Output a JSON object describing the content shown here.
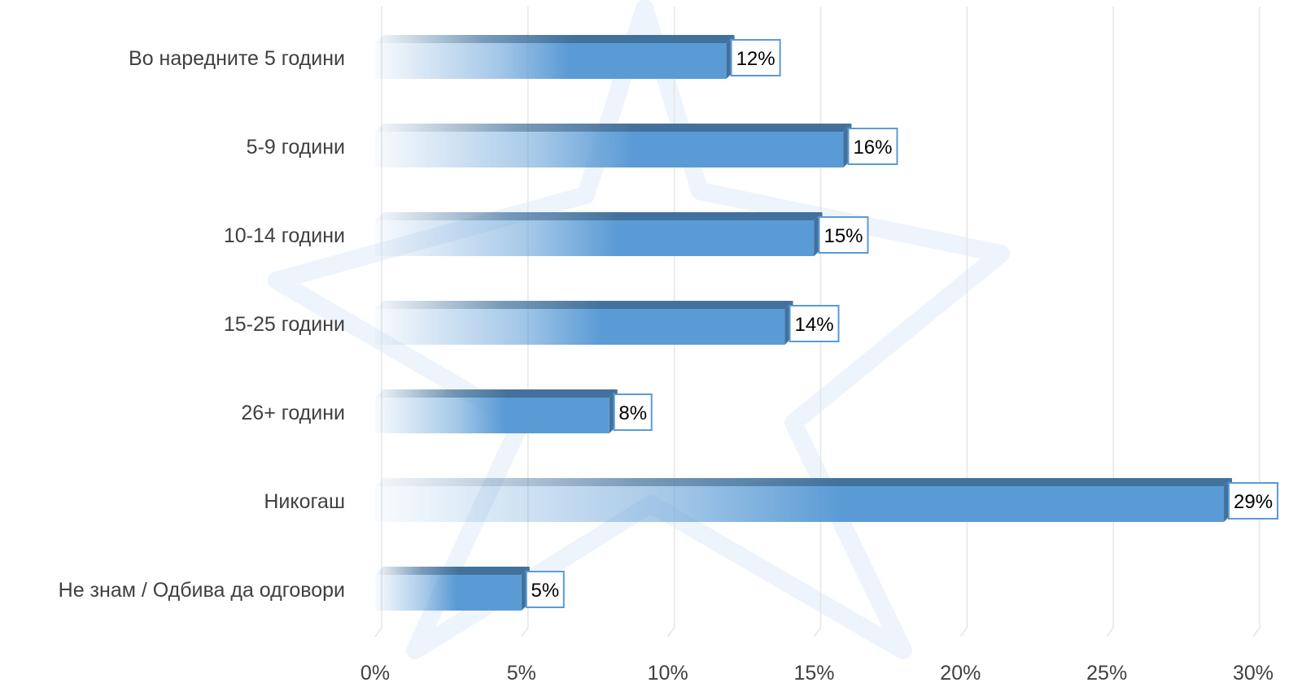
{
  "chart_data": {
    "type": "bar",
    "orientation": "horizontal",
    "categories": [
      "Во наредните 5 години",
      "5-9 години",
      "10-14 години",
      "15-25 години",
      "26+ години",
      "Никогаш",
      "Не знам / Одбива да одговори"
    ],
    "values": [
      12,
      16,
      15,
      14,
      8,
      29,
      5
    ],
    "data_labels": [
      "12%",
      "16%",
      "15%",
      "14%",
      "8%",
      "29%",
      "5%"
    ],
    "x_ticks": [
      "0%",
      "5%",
      "10%",
      "15%",
      "20%",
      "25%",
      "30%"
    ],
    "xlim": [
      0,
      30
    ],
    "grid": "vertical",
    "legend": "none",
    "bar_color": "#5b9bd5",
    "bar_top_color": "#41719c"
  }
}
